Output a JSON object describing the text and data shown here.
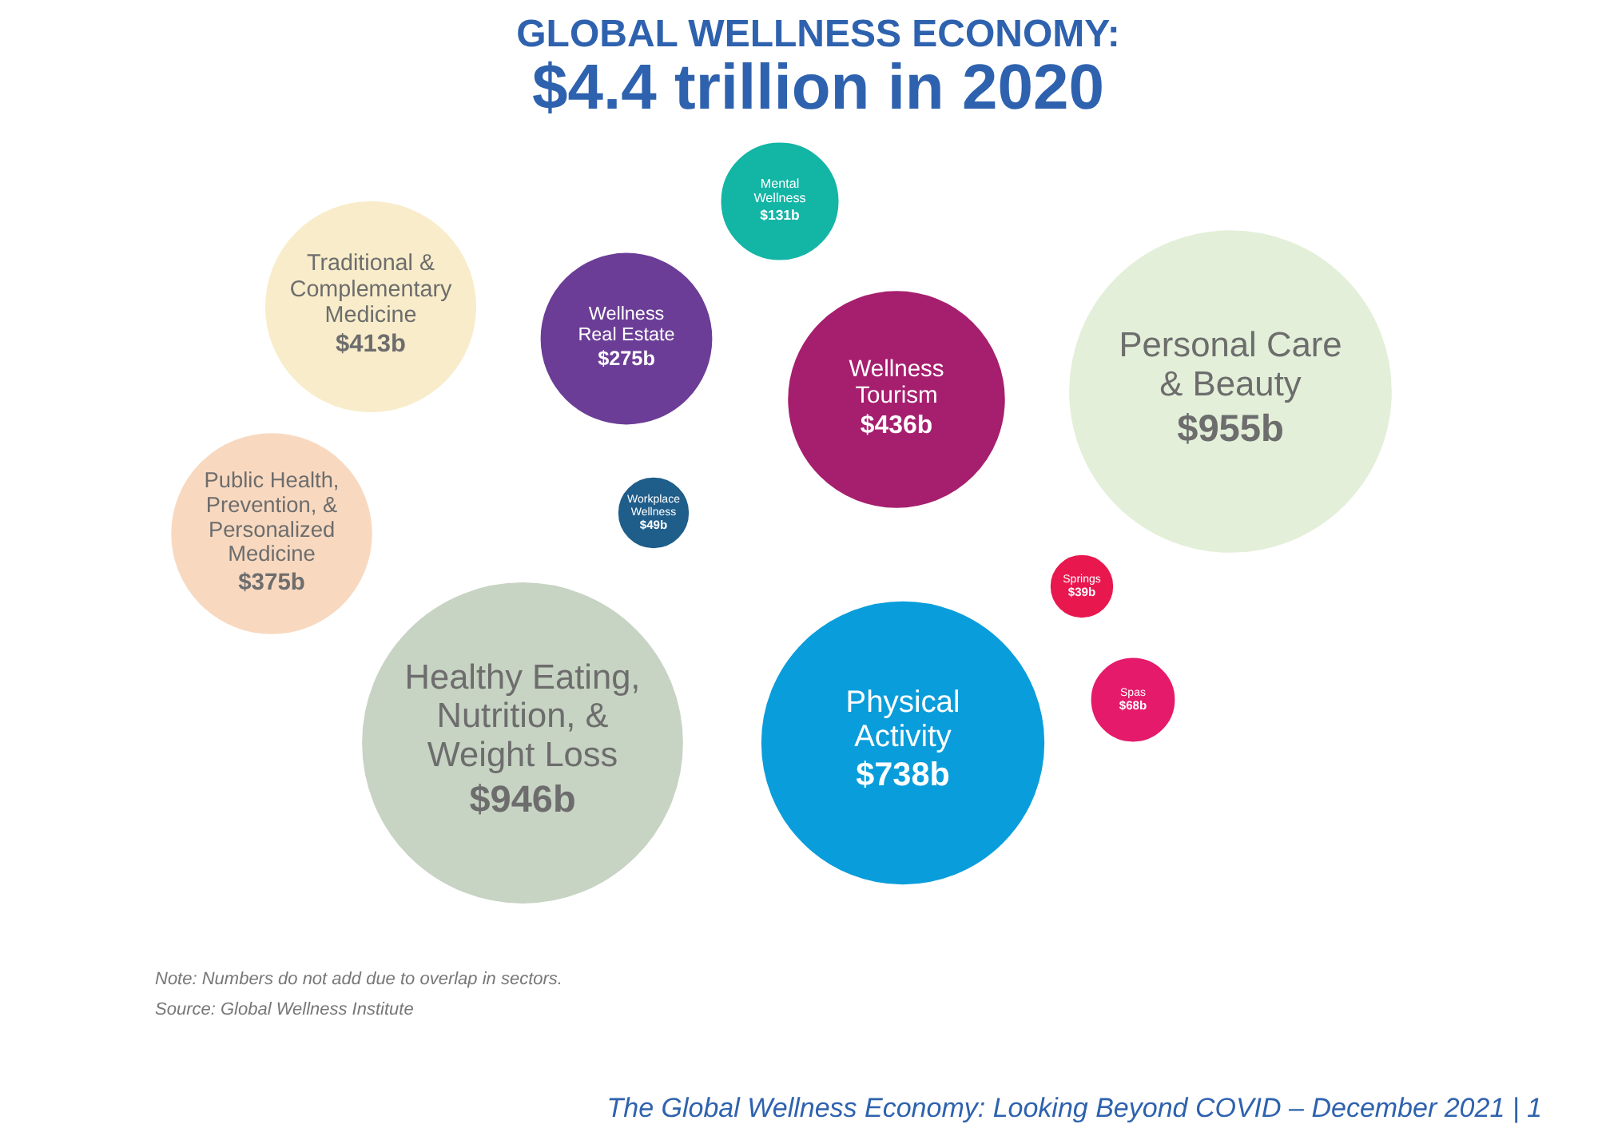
{
  "chart_data": {
    "type": "other",
    "title": "GLOBAL WELLNESS ECONOMY:",
    "subtitle": "$4.4 trillion in 2020",
    "categories": [
      "Traditional &\nComplementary\nMedicine",
      "Wellness\nReal Estate",
      "Mental\nWellness",
      "Wellness\nTourism",
      "Personal Care\n& Beauty",
      "Public Health,\nPrevention, &\nPersonalized\nMedicine",
      "Workplace\nWellness",
      "Springs",
      "Spas",
      "Healthy Eating,\nNutrition, &\nWeight Loss",
      "Physical\nActivity"
    ],
    "values": [
      413,
      275,
      131,
      436,
      955,
      375,
      49,
      39,
      68,
      946,
      738
    ],
    "value_labels": [
      "$413b",
      "$275b",
      "$131b",
      "$436b",
      "$955b",
      "$375b",
      "$49b",
      "$39b",
      "$68b",
      "$946b",
      "$738b"
    ],
    "colors": [
      "#f8ecca",
      "#6b3d97",
      "#13b5a5",
      "#a61f6e",
      "#e3efd8",
      "#f8d9c0",
      "#1f5d8a",
      "#e8174e",
      "#e51a6b",
      "#c7d3c3",
      "#0a9ddb"
    ],
    "annotations": [
      "Note: Numbers do not add due to overlap in sectors.",
      "Source: Global Wellness Institute",
      "The Global Wellness Economy: Looking Beyond COVID – December 2021  | 1"
    ]
  }
}
